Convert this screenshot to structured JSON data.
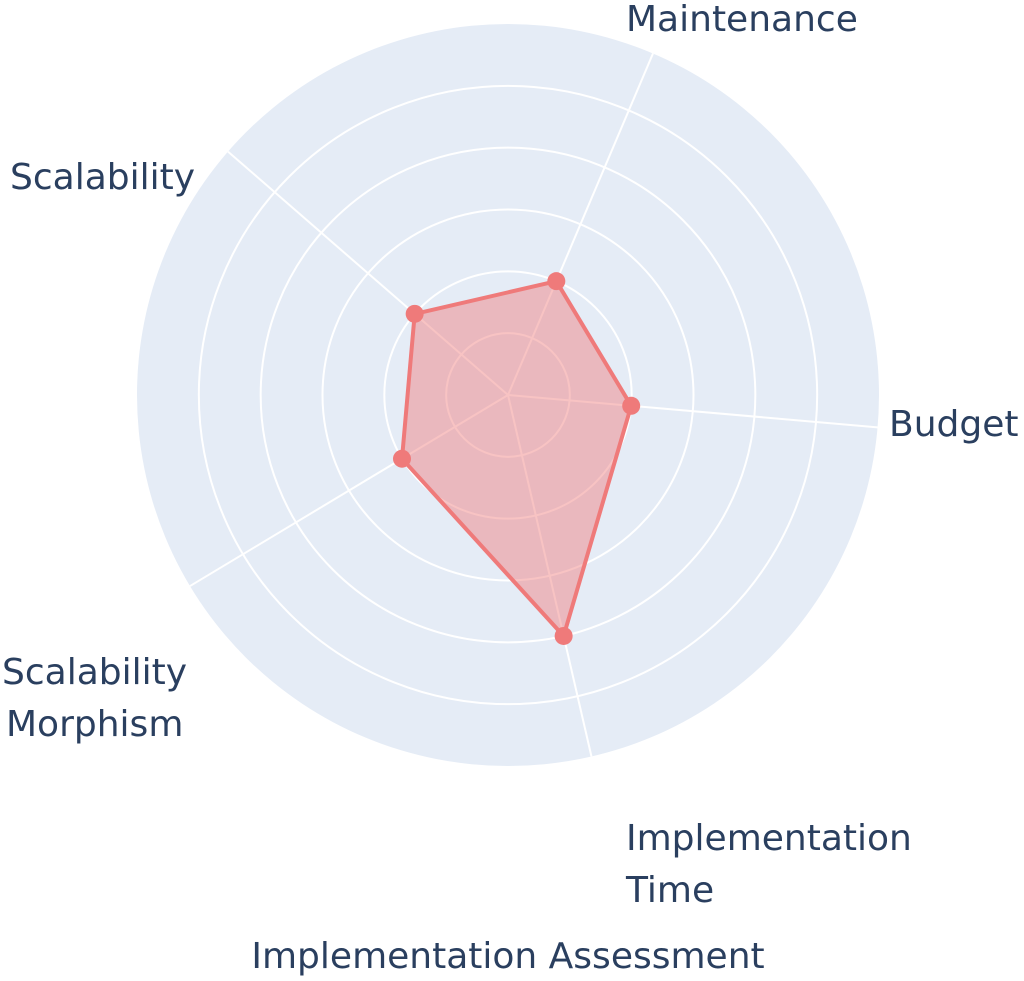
{
  "chart_data": {
    "type": "radar",
    "title": "Implementation Assessment",
    "axes": [
      {
        "lines": [
          "Budget"
        ]
      },
      {
        "lines": [
          "Maintenance"
        ]
      },
      {
        "lines": [
          "Scalability"
        ]
      },
      {
        "lines": [
          "Scalability",
          "Morphism"
        ]
      },
      {
        "lines": [
          "Implementation",
          "Time"
        ]
      }
    ],
    "categories": [
      "Budget",
      "Maintenance",
      "Scalability",
      "Scalability Morphism",
      "Implementation Time"
    ],
    "series": [
      {
        "values": [
          2,
          2,
          2,
          2,
          4
        ]
      }
    ],
    "r_range": [
      0,
      6
    ],
    "grid": true,
    "colors": {
      "polar_bg": "#e5ecf6",
      "grid": "#ffffff",
      "series_line": "#ef7a7a",
      "series_fill": "rgba(239, 122, 122, 0.45)",
      "text": "#2a3f5f"
    }
  }
}
